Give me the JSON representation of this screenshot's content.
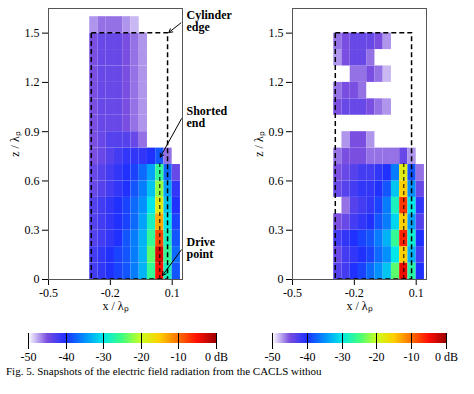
{
  "chart_data": [
    {
      "type": "heatmap",
      "x_label": "x / λₚ",
      "y_label": "z / λₚ",
      "xlim": [
        -0.5,
        0.15
      ],
      "xticks": [
        -0.5,
        -0.2,
        0.1
      ],
      "ylim": [
        0,
        1.65
      ],
      "yticks": [
        0,
        0.3,
        0.6,
        0.9,
        1.2,
        1.5
      ],
      "cells": {
        "x": [
          -0.28,
          -0.24,
          -0.2,
          -0.16,
          -0.12,
          -0.08,
          -0.04,
          0,
          0.04,
          0.08,
          0.12
        ],
        "z": [
          0.05,
          0.15,
          0.25,
          0.35,
          0.45,
          0.55,
          0.65,
          0.75,
          0.85,
          0.95,
          1.05,
          1.15,
          1.25,
          1.35,
          1.45,
          1.55
        ],
        "values": [
          [
            -42,
            -41,
            -40,
            -39,
            -38,
            -36,
            -33,
            -26,
            -5,
            -28,
            -38
          ],
          [
            -42,
            -41,
            -40,
            -39,
            -38,
            -36,
            -33,
            -24,
            -3,
            -26,
            -37
          ],
          [
            -43,
            -42,
            -41,
            -40,
            -38,
            -36,
            -33,
            -26,
            -8,
            -28,
            -38
          ],
          [
            -43,
            -42,
            -41,
            -40,
            -39,
            -37,
            -34,
            -28,
            -13,
            -30,
            -39
          ],
          [
            -43,
            -42,
            -41,
            -40,
            -39,
            -37,
            -35,
            -30,
            -18,
            -32,
            -40
          ],
          [
            -44,
            -43,
            -42,
            -41,
            -40,
            -38,
            -36,
            -32,
            -22,
            -34,
            -41
          ],
          [
            -44,
            -43,
            -42,
            -41,
            -40,
            -39,
            -37,
            -34,
            -26,
            -37,
            -44
          ],
          [
            -45,
            -44,
            -43,
            -42,
            -41,
            -41,
            -41,
            -40,
            -38,
            -46,
            null
          ],
          [
            -45,
            -44,
            -43,
            -43,
            -43,
            -44,
            -46,
            null,
            null,
            null,
            null
          ],
          [
            -45,
            -44,
            -44,
            -44,
            -45,
            -46,
            -47,
            null,
            null,
            null,
            null
          ],
          [
            -45,
            -44,
            -44,
            -44,
            -45,
            -46,
            -47,
            null,
            null,
            null,
            null
          ],
          [
            -45,
            -44,
            -44,
            -44,
            -45,
            -46,
            -47,
            null,
            null,
            null,
            null
          ],
          [
            -45,
            -44,
            -44,
            -44,
            -45,
            -46,
            -47,
            null,
            null,
            null,
            null
          ],
          [
            -45,
            -44,
            -44,
            -44,
            -45,
            -46,
            -47,
            null,
            null,
            null,
            null
          ],
          [
            -45,
            -44,
            -44,
            -44,
            -45,
            -46,
            -47,
            null,
            null,
            null,
            null
          ],
          [
            -47,
            -46,
            -46,
            -46,
            -47,
            -48,
            null,
            null,
            null,
            null,
            null
          ]
        ]
      },
      "outline": {
        "x": [
          -0.29,
          0.08
        ],
        "z": [
          0,
          1.5
        ]
      },
      "feed": {
        "x": 0.04,
        "z": [
          0,
          0.72
        ]
      },
      "annotations": [
        {
          "text": "Cylinder edge",
          "x": 0.08,
          "z": 1.5
        },
        {
          "text": "Shorted end",
          "x": 0.04,
          "z": 0.74
        },
        {
          "text": "Drive point",
          "x": 0.05,
          "z": 0.02
        }
      ],
      "colorbar": {
        "range": [
          -50,
          0
        ],
        "ticks": [
          -50,
          -40,
          -30,
          -20,
          -10,
          {
            "value": 0,
            "label": "0 dB"
          }
        ]
      }
    },
    {
      "type": "heatmap",
      "x_label": "x / λₚ",
      "y_label": "z / λₚ",
      "xlim": [
        -0.5,
        0.15
      ],
      "xticks": [
        -0.5,
        -0.2,
        0.1
      ],
      "ylim": [
        0,
        1.65
      ],
      "yticks": [
        0,
        0.3,
        0.6,
        0.9,
        1.2,
        1.5
      ],
      "cells": {
        "x": [
          -0.28,
          -0.24,
          -0.2,
          -0.16,
          -0.12,
          -0.08,
          -0.04,
          0,
          0.04,
          0.08,
          0.12
        ],
        "z": [
          0.05,
          0.15,
          0.25,
          0.35,
          0.45,
          0.55,
          0.65,
          0.75,
          0.85,
          0.95,
          1.05,
          1.15,
          1.25,
          1.35,
          1.45,
          1.55
        ],
        "values": [
          [
            -43,
            -42,
            -40,
            -39,
            -37,
            -35,
            -32,
            -24,
            -4,
            -27,
            -40
          ],
          [
            -44,
            -42,
            -41,
            -40,
            -39,
            -37,
            -35,
            -30,
            -15,
            -33,
            -42
          ],
          [
            -42,
            -41,
            -40,
            -39,
            -38,
            -36,
            -33,
            -26,
            -6,
            -29,
            -40
          ],
          [
            -45,
            -44,
            -42,
            -41,
            -40,
            -38,
            -36,
            -31,
            -15,
            -34,
            -43
          ],
          [
            null,
            -46,
            -43,
            -42,
            -41,
            -39,
            -36,
            -28,
            -7,
            -30,
            -41
          ],
          [
            -44,
            -43,
            -42,
            -41,
            -41,
            -40,
            -38,
            -32,
            -15,
            -35,
            -44
          ],
          [
            -45,
            -44,
            -43,
            -42,
            -42,
            -41,
            -40,
            -36,
            -18,
            -38,
            -46
          ],
          [
            -46,
            -45,
            -45,
            -45,
            -46,
            -46,
            -46,
            -46,
            -44,
            -47,
            null
          ],
          [
            null,
            -47,
            -45,
            -45,
            -47,
            null,
            null,
            null,
            null,
            null,
            null
          ],
          [
            null,
            null,
            null,
            null,
            null,
            null,
            null,
            null,
            null,
            null,
            null
          ],
          [
            -45,
            -44,
            -44,
            -44,
            -45,
            -46,
            -47,
            null,
            null,
            null,
            null
          ],
          [
            -46,
            -45,
            -45,
            -46,
            null,
            null,
            null,
            null,
            null,
            null,
            null
          ],
          [
            null,
            null,
            -46,
            -46,
            -45,
            -46,
            -48,
            null,
            null,
            null,
            null
          ],
          [
            -47,
            -45,
            -44,
            -44,
            -46,
            null,
            null,
            null,
            null,
            null,
            null
          ],
          [
            -46,
            -45,
            -44,
            -44,
            -44,
            -45,
            -47,
            null,
            null,
            null,
            null
          ],
          [
            null,
            null,
            null,
            null,
            null,
            null,
            null,
            null,
            null,
            null,
            null
          ]
        ]
      },
      "outline": {
        "x": [
          -0.29,
          0.08
        ],
        "z": [
          0,
          1.5
        ]
      },
      "feed": {
        "x": 0.04,
        "z": [
          0,
          0.72
        ]
      },
      "colorbar": {
        "range": [
          -50,
          0
        ],
        "ticks": [
          -50,
          -40,
          -30,
          -20,
          -10,
          {
            "value": 0,
            "label": "0 dB"
          }
        ]
      }
    }
  ],
  "caption": "Fig. 5.   Snapshots of the electric field radiation from the CACLS withou"
}
